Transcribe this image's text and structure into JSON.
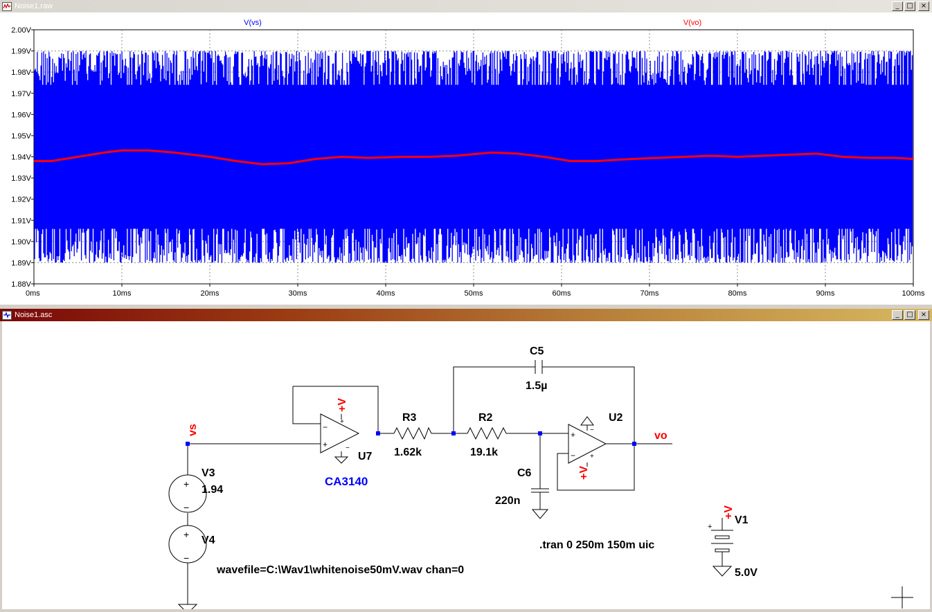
{
  "plot_window": {
    "title": "Noise1.raw",
    "icon": "waveform-icon",
    "buttons": [
      "_",
      "□",
      "×"
    ]
  },
  "schematic_window": {
    "title": "Noise1.asc",
    "icon": "schematic-icon",
    "buttons": [
      "_",
      "□",
      "×"
    ]
  },
  "colors": {
    "vs": "#0000ff",
    "vo": "#ff0000",
    "grid": "#888888",
    "schematic_label": "#0000ff",
    "net_label": "#ff0000"
  },
  "chart_data": {
    "type": "line",
    "xlabel": "",
    "ylabel": "",
    "xlim": [
      0,
      100
    ],
    "ylim": [
      1.88,
      2.0
    ],
    "x_unit": "ms",
    "y_unit": "V",
    "x_ticks": [
      "0ms",
      "10ms",
      "20ms",
      "30ms",
      "40ms",
      "50ms",
      "60ms",
      "70ms",
      "80ms",
      "90ms",
      "100ms"
    ],
    "y_ticks": [
      "1.88V",
      "1.89V",
      "1.90V",
      "1.91V",
      "1.92V",
      "1.93V",
      "1.94V",
      "1.95V",
      "1.96V",
      "1.97V",
      "1.98V",
      "1.99V",
      "2.00V"
    ],
    "grid": true,
    "series": [
      {
        "name": "V(vs)",
        "color": "#0000ff",
        "description_level": "noise",
        "center": 1.94,
        "min": 1.89,
        "max": 1.99
      },
      {
        "name": "V(vo)",
        "color": "#ff0000",
        "x": [
          0,
          2,
          5,
          8,
          10,
          13,
          16,
          20,
          23,
          26,
          29,
          32,
          35,
          38,
          42,
          45,
          48,
          52,
          55,
          58,
          61,
          64,
          68,
          71,
          74,
          77,
          80,
          83,
          86,
          89,
          92,
          95,
          98,
          100
        ],
        "y": [
          1.938,
          1.938,
          1.94,
          1.942,
          1.943,
          1.943,
          1.942,
          1.94,
          1.938,
          1.9365,
          1.937,
          1.939,
          1.94,
          1.9395,
          1.94,
          1.94,
          1.9405,
          1.942,
          1.9415,
          1.94,
          1.938,
          1.938,
          1.939,
          1.9395,
          1.94,
          1.9405,
          1.94,
          1.9405,
          1.941,
          1.9415,
          1.94,
          1.9395,
          1.9395,
          1.939
        ]
      }
    ]
  },
  "schematic": {
    "net_vs": "vs",
    "net_vo": "vo",
    "supply_label": "+V",
    "U7": {
      "ref": "U7",
      "model": "CA3140"
    },
    "U2": {
      "ref": "U2"
    },
    "R3": {
      "ref": "R3",
      "value": "1.62k"
    },
    "R2": {
      "ref": "R2",
      "value": "19.1k"
    },
    "C5": {
      "ref": "C5",
      "value": "1.5µ"
    },
    "C6": {
      "ref": "C6",
      "value": "220n"
    },
    "V3": {
      "ref": "V3",
      "value": "1.94"
    },
    "V4": {
      "ref": "V4",
      "value": "wavefile=C:\\Wav1\\whitenoise50mV.wav chan=0"
    },
    "V1": {
      "ref": "V1",
      "value": "5.0V"
    },
    "directive": ".tran 0 250m 150m uic"
  }
}
